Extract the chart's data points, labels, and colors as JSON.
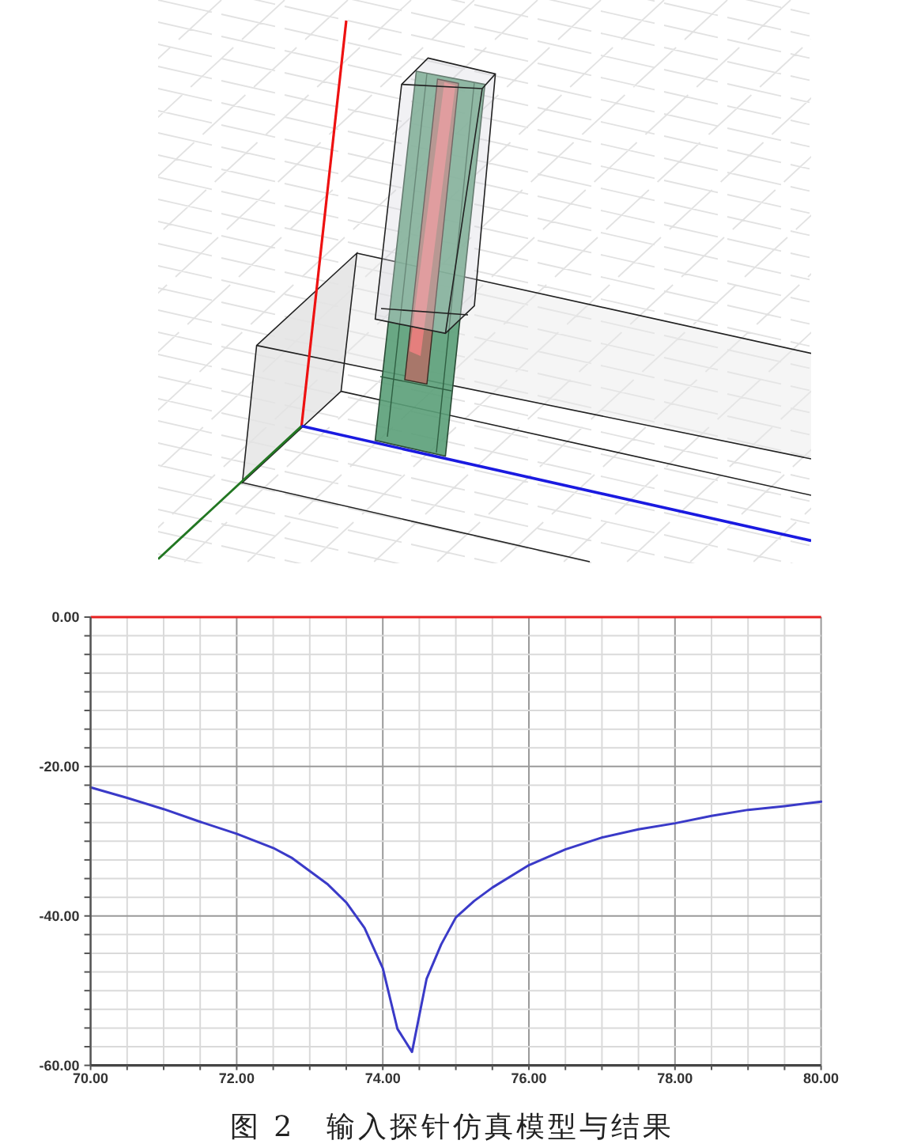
{
  "chart_data": {
    "type": "line",
    "annotations": [
      "图 2　输入探针仿真模型与结果"
    ],
    "x": [
      70,
      70.5,
      71,
      71.5,
      72,
      72.5,
      72.75,
      73,
      73.25,
      73.5,
      73.75,
      74,
      74.2,
      74.4,
      74.6,
      74.8,
      75,
      75.25,
      75.5,
      76,
      76.5,
      77,
      77.5,
      78,
      78.5,
      79,
      79.5,
      80
    ],
    "values": [
      -22.8,
      -24.2,
      -25.7,
      -27.4,
      -29.0,
      -30.9,
      -32.2,
      -34.0,
      -35.8,
      -38.2,
      -41.6,
      -47.0,
      -55.1,
      -58.2,
      -48.4,
      -43.8,
      -40.2,
      -38.0,
      -36.2,
      -33.2,
      -31.1,
      -29.5,
      -28.4,
      -27.6,
      -26.6,
      -25.8,
      -25.3,
      -24.7
    ],
    "color": "#3a3ac8",
    "xlim": [
      70,
      80
    ],
    "ylim": [
      -60,
      0
    ],
    "xticks": [
      {
        "value": 70,
        "label": "70.00"
      },
      {
        "value": 70.5,
        "label": null
      },
      {
        "value": 71,
        "label": null
      },
      {
        "value": 71.5,
        "label": null
      },
      {
        "value": 72,
        "label": "72.00"
      },
      {
        "value": 72.5,
        "label": null
      },
      {
        "value": 73,
        "label": null
      },
      {
        "value": 73.5,
        "label": null
      },
      {
        "value": 74,
        "label": "74.00"
      },
      {
        "value": 74.5,
        "label": null
      },
      {
        "value": 75,
        "label": null
      },
      {
        "value": 75.5,
        "label": null
      },
      {
        "value": 76,
        "label": "76.00"
      },
      {
        "value": 76.5,
        "label": null
      },
      {
        "value": 77,
        "label": null
      },
      {
        "value": 77.5,
        "label": null
      },
      {
        "value": 78,
        "label": "78.00"
      },
      {
        "value": 78.5,
        "label": null
      },
      {
        "value": 79,
        "label": null
      },
      {
        "value": 79.5,
        "label": null
      },
      {
        "value": 80,
        "label": "80.00"
      }
    ],
    "yticks": [
      {
        "value": -60,
        "label": "-60.00"
      },
      {
        "value": -57.5,
        "label": null
      },
      {
        "value": -55,
        "label": null
      },
      {
        "value": -52.5,
        "label": null
      },
      {
        "value": -50,
        "label": null
      },
      {
        "value": -47.5,
        "label": null
      },
      {
        "value": -45,
        "label": null
      },
      {
        "value": -42.5,
        "label": null
      },
      {
        "value": -40,
        "label": "-40.00"
      },
      {
        "value": -37.5,
        "label": null
      },
      {
        "value": -35,
        "label": null
      },
      {
        "value": -32.5,
        "label": null
      },
      {
        "value": -30,
        "label": null
      },
      {
        "value": -27.5,
        "label": null
      },
      {
        "value": -25,
        "label": null
      },
      {
        "value": -22.5,
        "label": null
      },
      {
        "value": -20,
        "label": "-20.00"
      },
      {
        "value": -17.5,
        "label": null
      },
      {
        "value": -15,
        "label": null
      },
      {
        "value": -12.5,
        "label": null
      },
      {
        "value": -10,
        "label": null
      },
      {
        "value": -7.5,
        "label": null
      },
      {
        "value": -5,
        "label": null
      },
      {
        "value": -2.5,
        "label": null
      },
      {
        "value": 0,
        "label": "0.00"
      }
    ],
    "grid": true,
    "ref_lines": [
      {
        "axis": "y",
        "value": 0,
        "color": "#e82020"
      }
    ]
  }
}
